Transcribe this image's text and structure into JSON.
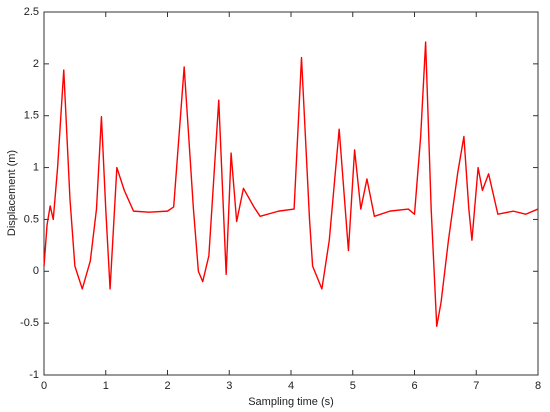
{
  "chart_data": {
    "type": "line",
    "xlabel": "Sampling time (s)",
    "ylabel": "Displacement (m)",
    "xlim": [
      0,
      8
    ],
    "xticks": [
      0,
      1,
      2,
      3,
      4,
      5,
      6,
      7,
      8
    ],
    "ylim": [
      -1,
      2.5
    ],
    "yticks": [
      -1,
      -0.5,
      0,
      0.5,
      1,
      1.5,
      2,
      2.5
    ],
    "series": [
      {
        "color": "#ff0000",
        "x": [
          0,
          0.05,
          0.1,
          0.15,
          0.22,
          0.32,
          0.42,
          0.5,
          0.62,
          0.75,
          0.85,
          0.93,
          1.0,
          1.07,
          1.18,
          1.3,
          1.45,
          1.7,
          2.0,
          2.1,
          2.27,
          2.42,
          2.5,
          2.57,
          2.67,
          2.83,
          2.95,
          3.03,
          3.12,
          3.23,
          3.4,
          3.5,
          3.8,
          4.05,
          4.17,
          4.3,
          4.35,
          4.5,
          4.62,
          4.78,
          4.93,
          5.03,
          5.13,
          5.23,
          5.35,
          5.6,
          5.9,
          6.0,
          6.1,
          6.18,
          6.27,
          6.36,
          6.43,
          6.55,
          6.7,
          6.8,
          6.88,
          6.93,
          7.03,
          7.1,
          7.2,
          7.35,
          7.6,
          7.8,
          8.0
        ],
        "values": [
          0.05,
          0.45,
          0.63,
          0.5,
          1.0,
          1.94,
          0.7,
          0.05,
          -0.17,
          0.1,
          0.6,
          1.49,
          0.6,
          -0.17,
          1.0,
          0.78,
          0.58,
          0.57,
          0.58,
          0.62,
          1.97,
          0.6,
          0.0,
          -0.1,
          0.15,
          1.65,
          -0.03,
          1.14,
          0.48,
          0.8,
          0.62,
          0.53,
          0.58,
          0.6,
          2.06,
          0.5,
          0.05,
          -0.17,
          0.3,
          1.37,
          0.2,
          1.17,
          0.6,
          0.89,
          0.53,
          0.58,
          0.6,
          0.55,
          1.3,
          2.21,
          0.6,
          -0.53,
          -0.3,
          0.3,
          0.95,
          1.3,
          0.6,
          0.3,
          1.0,
          0.78,
          0.94,
          0.55,
          0.58,
          0.55,
          0.6
        ]
      }
    ]
  }
}
